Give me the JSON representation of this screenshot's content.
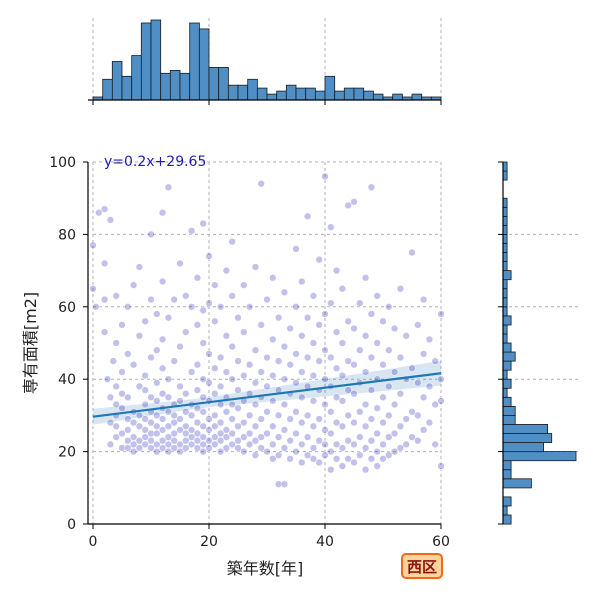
{
  "chart_data": {
    "type": "scatter",
    "xlabel": "築年数[年]",
    "ylabel": "専有面積[m2]",
    "xlim": [
      0,
      60
    ],
    "ylim": [
      0,
      100
    ],
    "x_ticks": [
      "0",
      "20",
      "40",
      "60"
    ],
    "y_ticks": [
      "0",
      "20",
      "40",
      "60",
      "80",
      "100"
    ],
    "grid": true,
    "regression": {
      "equation": "y=0.2x+29.65",
      "slope": 0.2,
      "intercept": 29.65,
      "x_range": [
        0,
        60
      ]
    },
    "badge": "西区",
    "colors": {
      "point": "#2222bb",
      "line": "#1f77b4",
      "hist": "#4f8fc6",
      "badge_fill": "#ffd39a",
      "badge_border": "#ef6a1a",
      "badge_text": "#8a1212"
    },
    "points": [
      [
        0,
        65
      ],
      [
        0,
        77
      ],
      [
        0.5,
        60
      ],
      [
        1,
        86
      ],
      [
        2,
        87
      ],
      [
        2,
        62
      ],
      [
        2,
        72
      ],
      [
        2,
        53
      ],
      [
        2.5,
        40
      ],
      [
        3,
        22
      ],
      [
        3,
        28
      ],
      [
        3,
        35
      ],
      [
        3,
        84
      ],
      [
        3.5,
        45
      ],
      [
        4,
        24
      ],
      [
        4,
        27
      ],
      [
        4,
        30
      ],
      [
        4,
        33
      ],
      [
        4,
        38
      ],
      [
        4,
        50
      ],
      [
        4,
        63
      ],
      [
        5,
        21
      ],
      [
        5,
        25
      ],
      [
        5,
        32
      ],
      [
        5,
        36
      ],
      [
        5,
        42
      ],
      [
        5,
        55
      ],
      [
        6,
        21
      ],
      [
        6,
        23
      ],
      [
        6,
        26
      ],
      [
        6,
        29
      ],
      [
        6,
        35
      ],
      [
        6,
        47
      ],
      [
        6,
        60
      ],
      [
        7,
        20
      ],
      [
        7,
        22
      ],
      [
        7,
        24
      ],
      [
        7,
        28
      ],
      [
        7,
        31
      ],
      [
        7,
        44
      ],
      [
        7,
        66
      ],
      [
        8,
        21
      ],
      [
        8,
        23
      ],
      [
        8,
        27
      ],
      [
        8,
        30
      ],
      [
        8,
        38
      ],
      [
        8,
        52
      ],
      [
        8,
        71
      ],
      [
        9,
        22
      ],
      [
        9,
        24
      ],
      [
        9,
        26
      ],
      [
        9,
        29
      ],
      [
        9,
        33
      ],
      [
        9,
        37
      ],
      [
        9,
        41
      ],
      [
        9,
        56
      ],
      [
        10,
        21
      ],
      [
        10,
        23
      ],
      [
        10,
        25
      ],
      [
        10,
        28
      ],
      [
        10,
        31
      ],
      [
        10,
        35
      ],
      [
        10,
        46
      ],
      [
        10,
        62
      ],
      [
        10,
        80
      ],
      [
        11,
        20
      ],
      [
        11,
        22
      ],
      [
        11,
        25
      ],
      [
        11,
        27
      ],
      [
        11,
        30
      ],
      [
        11,
        34
      ],
      [
        11,
        39
      ],
      [
        11,
        48
      ],
      [
        11,
        58
      ],
      [
        12,
        21
      ],
      [
        12,
        23
      ],
      [
        12,
        26
      ],
      [
        12,
        29
      ],
      [
        12,
        32
      ],
      [
        12,
        36
      ],
      [
        12,
        43
      ],
      [
        12,
        51
      ],
      [
        12,
        67
      ],
      [
        12,
        86
      ],
      [
        13,
        20
      ],
      [
        13,
        22
      ],
      [
        13,
        24
      ],
      [
        13,
        27
      ],
      [
        13,
        31
      ],
      [
        13,
        35
      ],
      [
        13,
        40
      ],
      [
        13,
        57
      ],
      [
        13,
        93
      ],
      [
        14,
        21
      ],
      [
        14,
        23
      ],
      [
        14,
        25
      ],
      [
        14,
        28
      ],
      [
        14,
        30
      ],
      [
        14,
        33
      ],
      [
        14,
        45
      ],
      [
        14,
        62
      ],
      [
        15,
        20
      ],
      [
        15,
        22
      ],
      [
        15,
        26
      ],
      [
        15,
        29
      ],
      [
        15,
        34
      ],
      [
        15,
        38
      ],
      [
        15,
        49
      ],
      [
        15,
        72
      ],
      [
        16,
        21
      ],
      [
        16,
        23
      ],
      [
        16,
        25
      ],
      [
        16,
        27
      ],
      [
        16,
        31
      ],
      [
        16,
        36
      ],
      [
        16,
        53
      ],
      [
        16,
        63
      ],
      [
        17,
        22
      ],
      [
        17,
        24
      ],
      [
        17,
        26
      ],
      [
        17,
        30
      ],
      [
        17,
        33
      ],
      [
        17,
        42
      ],
      [
        17,
        60
      ],
      [
        17,
        81
      ],
      [
        18,
        21
      ],
      [
        18,
        23
      ],
      [
        18,
        25
      ],
      [
        18,
        28
      ],
      [
        18,
        32
      ],
      [
        18,
        37
      ],
      [
        18,
        44
      ],
      [
        18,
        55
      ],
      [
        18,
        68
      ],
      [
        19,
        20
      ],
      [
        19,
        22
      ],
      [
        19,
        24
      ],
      [
        19,
        27
      ],
      [
        19,
        31
      ],
      [
        19,
        35
      ],
      [
        19,
        40
      ],
      [
        19,
        50
      ],
      [
        19,
        59
      ],
      [
        19,
        83
      ],
      [
        20,
        21
      ],
      [
        20,
        23
      ],
      [
        20,
        26
      ],
      [
        20,
        29
      ],
      [
        20,
        34
      ],
      [
        20,
        39
      ],
      [
        20,
        47
      ],
      [
        20,
        61
      ],
      [
        20,
        74
      ],
      [
        21,
        22
      ],
      [
        21,
        24
      ],
      [
        21,
        27
      ],
      [
        21,
        30
      ],
      [
        21,
        36
      ],
      [
        21,
        43
      ],
      [
        21,
        56
      ],
      [
        21,
        66
      ],
      [
        22,
        20
      ],
      [
        22,
        23
      ],
      [
        22,
        25
      ],
      [
        22,
        28
      ],
      [
        22,
        33
      ],
      [
        22,
        38
      ],
      [
        22,
        46
      ],
      [
        22,
        60
      ],
      [
        23,
        21
      ],
      [
        23,
        24
      ],
      [
        23,
        26
      ],
      [
        23,
        31
      ],
      [
        23,
        35
      ],
      [
        23,
        42
      ],
      [
        23,
        52
      ],
      [
        23,
        70
      ],
      [
        24,
        22
      ],
      [
        24,
        25
      ],
      [
        24,
        29
      ],
      [
        24,
        33
      ],
      [
        24,
        40
      ],
      [
        24,
        49
      ],
      [
        24,
        63
      ],
      [
        24,
        78
      ],
      [
        25,
        21
      ],
      [
        25,
        23
      ],
      [
        25,
        27
      ],
      [
        25,
        32
      ],
      [
        25,
        37
      ],
      [
        25,
        45
      ],
      [
        25,
        57
      ],
      [
        26,
        20
      ],
      [
        26,
        24
      ],
      [
        26,
        28
      ],
      [
        26,
        34
      ],
      [
        26,
        41
      ],
      [
        26,
        53
      ],
      [
        26,
        66
      ],
      [
        27,
        22
      ],
      [
        27,
        25
      ],
      [
        27,
        30
      ],
      [
        27,
        36
      ],
      [
        27,
        44
      ],
      [
        27,
        60
      ],
      [
        28,
        19
      ],
      [
        28,
        23
      ],
      [
        28,
        27
      ],
      [
        28,
        33
      ],
      [
        28,
        39
      ],
      [
        28,
        48
      ],
      [
        28,
        71
      ],
      [
        29,
        21
      ],
      [
        29,
        24
      ],
      [
        29,
        29
      ],
      [
        29,
        35
      ],
      [
        29,
        42
      ],
      [
        29,
        55
      ],
      [
        29,
        94
      ],
      [
        30,
        20
      ],
      [
        30,
        25
      ],
      [
        30,
        31
      ],
      [
        30,
        38
      ],
      [
        30,
        46
      ],
      [
        30,
        62
      ],
      [
        31,
        18
      ],
      [
        31,
        22
      ],
      [
        31,
        27
      ],
      [
        31,
        34
      ],
      [
        31,
        41
      ],
      [
        31,
        51
      ],
      [
        31,
        68
      ],
      [
        32,
        11
      ],
      [
        32,
        19
      ],
      [
        32,
        24
      ],
      [
        32,
        30
      ],
      [
        32,
        37
      ],
      [
        32,
        45
      ],
      [
        32,
        57
      ],
      [
        33,
        11
      ],
      [
        33,
        21
      ],
      [
        33,
        26
      ],
      [
        33,
        33
      ],
      [
        33,
        40
      ],
      [
        33,
        49
      ],
      [
        33,
        64
      ],
      [
        34,
        18
      ],
      [
        34,
        23
      ],
      [
        34,
        29
      ],
      [
        34,
        36
      ],
      [
        34,
        44
      ],
      [
        34,
        54
      ],
      [
        35,
        20
      ],
      [
        35,
        25
      ],
      [
        35,
        31
      ],
      [
        35,
        39
      ],
      [
        35,
        47
      ],
      [
        35,
        60
      ],
      [
        35,
        76
      ],
      [
        36,
        17
      ],
      [
        36,
        22
      ],
      [
        36,
        28
      ],
      [
        36,
        35
      ],
      [
        36,
        42
      ],
      [
        36,
        52
      ],
      [
        36,
        67
      ],
      [
        37,
        19
      ],
      [
        37,
        24
      ],
      [
        37,
        30
      ],
      [
        37,
        38
      ],
      [
        37,
        46
      ],
      [
        37,
        57
      ],
      [
        37,
        85
      ],
      [
        38,
        18
      ],
      [
        38,
        21
      ],
      [
        38,
        27
      ],
      [
        38,
        34
      ],
      [
        38,
        41
      ],
      [
        38,
        50
      ],
      [
        38,
        63
      ],
      [
        39,
        17
      ],
      [
        39,
        23
      ],
      [
        39,
        29
      ],
      [
        39,
        37
      ],
      [
        39,
        45
      ],
      [
        39,
        55
      ],
      [
        39,
        73
      ],
      [
        40,
        19
      ],
      [
        40,
        22
      ],
      [
        40,
        26
      ],
      [
        40,
        33
      ],
      [
        40,
        40
      ],
      [
        40,
        48
      ],
      [
        40,
        58
      ],
      [
        40,
        96
      ],
      [
        41,
        15
      ],
      [
        41,
        20
      ],
      [
        41,
        25
      ],
      [
        41,
        31
      ],
      [
        41,
        38
      ],
      [
        41,
        46
      ],
      [
        41,
        61
      ],
      [
        41,
        82
      ],
      [
        42,
        18
      ],
      [
        42,
        22
      ],
      [
        42,
        28
      ],
      [
        42,
        35
      ],
      [
        42,
        43
      ],
      [
        42,
        53
      ],
      [
        42,
        70
      ],
      [
        43,
        16
      ],
      [
        43,
        21
      ],
      [
        43,
        27
      ],
      [
        43,
        34
      ],
      [
        43,
        41
      ],
      [
        43,
        50
      ],
      [
        43,
        65
      ],
      [
        44,
        18
      ],
      [
        44,
        23
      ],
      [
        44,
        30
      ],
      [
        44,
        37
      ],
      [
        44,
        45
      ],
      [
        44,
        56
      ],
      [
        44,
        88
      ],
      [
        45,
        17
      ],
      [
        45,
        22
      ],
      [
        45,
        28
      ],
      [
        45,
        36
      ],
      [
        45,
        44
      ],
      [
        45,
        54
      ],
      [
        45,
        89
      ],
      [
        46,
        19
      ],
      [
        46,
        24
      ],
      [
        46,
        31
      ],
      [
        46,
        39
      ],
      [
        46,
        48
      ],
      [
        46,
        61
      ],
      [
        47,
        15
      ],
      [
        47,
        21
      ],
      [
        47,
        27
      ],
      [
        47,
        33
      ],
      [
        47,
        42
      ],
      [
        47,
        52
      ],
      [
        47,
        68
      ],
      [
        48,
        18
      ],
      [
        48,
        23
      ],
      [
        48,
        29
      ],
      [
        48,
        37
      ],
      [
        48,
        46
      ],
      [
        48,
        58
      ],
      [
        48,
        93
      ],
      [
        49,
        16
      ],
      [
        49,
        20
      ],
      [
        49,
        25
      ],
      [
        49,
        32
      ],
      [
        49,
        40
      ],
      [
        49,
        50
      ],
      [
        49,
        63
      ],
      [
        50,
        18
      ],
      [
        50,
        22
      ],
      [
        50,
        28
      ],
      [
        50,
        35
      ],
      [
        50,
        44
      ],
      [
        50,
        56
      ],
      [
        51,
        19
      ],
      [
        51,
        24
      ],
      [
        51,
        30
      ],
      [
        51,
        38
      ],
      [
        51,
        48
      ],
      [
        51,
        60
      ],
      [
        52,
        20
      ],
      [
        52,
        25
      ],
      [
        52,
        33
      ],
      [
        52,
        42
      ],
      [
        52,
        54
      ],
      [
        53,
        21
      ],
      [
        53,
        27
      ],
      [
        53,
        36
      ],
      [
        53,
        46
      ],
      [
        53,
        65
      ],
      [
        54,
        22
      ],
      [
        54,
        29
      ],
      [
        54,
        40
      ],
      [
        54,
        52
      ],
      [
        55,
        24
      ],
      [
        55,
        31
      ],
      [
        55,
        43
      ],
      [
        55,
        75
      ],
      [
        56,
        23
      ],
      [
        56,
        30
      ],
      [
        56,
        39
      ],
      [
        56,
        55
      ],
      [
        57,
        26
      ],
      [
        57,
        35
      ],
      [
        57,
        47
      ],
      [
        57,
        62
      ],
      [
        58,
        28
      ],
      [
        58,
        38
      ],
      [
        58,
        51
      ],
      [
        59,
        22
      ],
      [
        59,
        33
      ],
      [
        59,
        45
      ],
      [
        60,
        16
      ],
      [
        60,
        34
      ],
      [
        60,
        40
      ],
      [
        60,
        58
      ]
    ],
    "marginal_x_counts": [
      1,
      7,
      13,
      8,
      15,
      26,
      27,
      9,
      10,
      9,
      26,
      24,
      11,
      11,
      5,
      5,
      7,
      4,
      2,
      3,
      5,
      4,
      4,
      3,
      8,
      3,
      4,
      4,
      3,
      2,
      1,
      2,
      1,
      2,
      1,
      1
    ],
    "marginal_y_counts": [
      2,
      1,
      2,
      0,
      7,
      2,
      2,
      18,
      10,
      12,
      11,
      3,
      3,
      2,
      1,
      2,
      1,
      2,
      3,
      2,
      1,
      1,
      2,
      1,
      1,
      1,
      1,
      2,
      1,
      1,
      1,
      1,
      1,
      1,
      1,
      1,
      0,
      0,
      1,
      1
    ]
  }
}
